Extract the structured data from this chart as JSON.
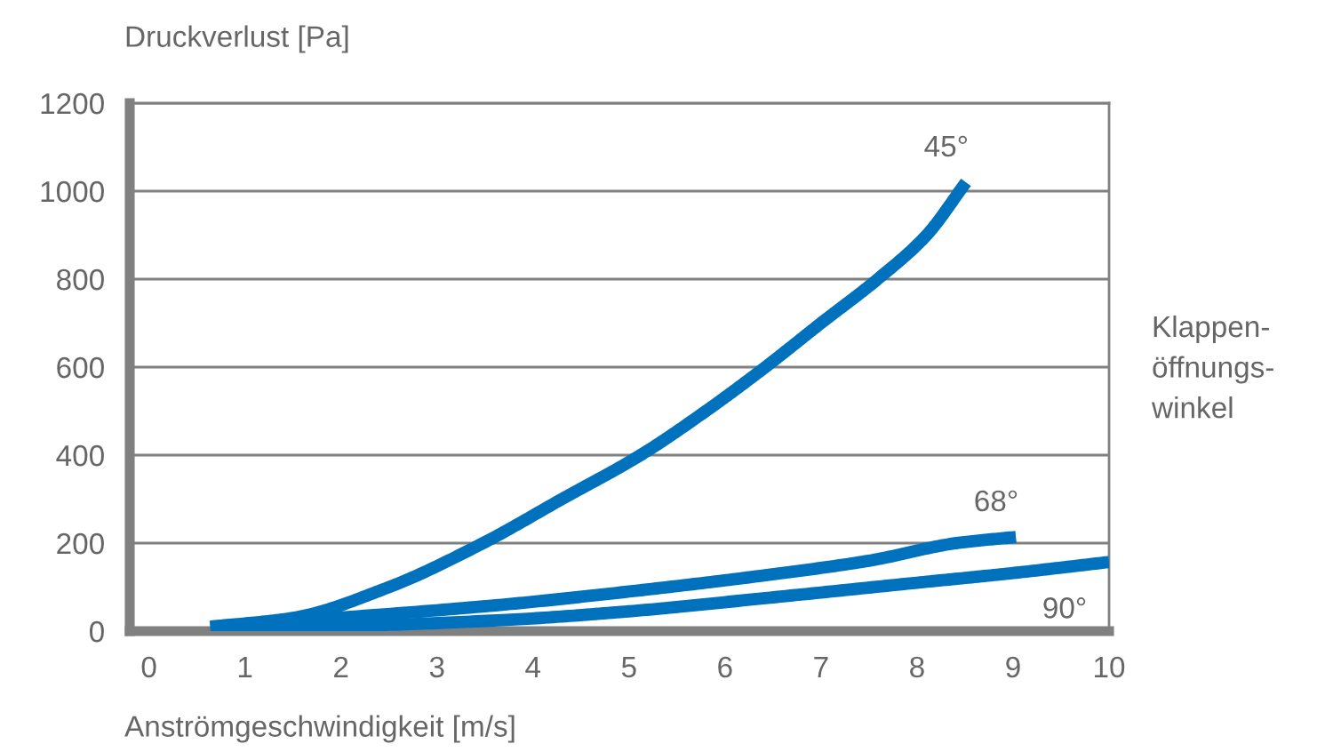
{
  "chart_data": {
    "type": "line",
    "xlabel": "Anströmgeschwindigkeit [m/s]",
    "ylabel": "Druckverlust [Pa]",
    "legend_title": "Klappen-\nöffnungs-\nwinkel",
    "xlim": [
      -0.2,
      10
    ],
    "ylim": [
      0,
      1200
    ],
    "xticks": [
      0,
      1,
      2,
      3,
      4,
      5,
      6,
      7,
      8,
      9,
      10
    ],
    "yticks": [
      0,
      200,
      400,
      600,
      800,
      1000,
      1200
    ],
    "grid": "y",
    "series": [
      {
        "color": "#0071bc",
        "x": [
          0.64,
          1.5,
          2.5,
          3.48,
          4.3,
          5.12,
          5.8,
          6.42,
          7.0,
          7.59,
          8.1,
          8.51
        ],
        "values": [
          10,
          30,
          100,
          200,
          300,
          400,
          500,
          600,
          700,
          800,
          900,
          1020
        ]
      },
      {
        "color": "#0071bc",
        "x": [
          0.64,
          1.63,
          3.68,
          5,
          6.42,
          7.5,
          8.41,
          9.03
        ],
        "values": [
          10,
          25,
          60,
          90,
          127,
          160,
          200,
          214
        ]
      },
      {
        "color": "#0071bc",
        "x": [
          0.64,
          2,
          3.68,
          5,
          6.42,
          8,
          9,
          10
        ],
        "values": [
          10,
          12,
          25,
          45,
          75,
          110,
          132,
          157
        ]
      }
    ],
    "annotations": [
      {
        "text": "45°",
        "x": 8.51,
        "y": 1020
      },
      {
        "text": "68°",
        "x": 9.03,
        "y": 214
      },
      {
        "text": "90°",
        "x": 10,
        "y": 157
      }
    ]
  }
}
